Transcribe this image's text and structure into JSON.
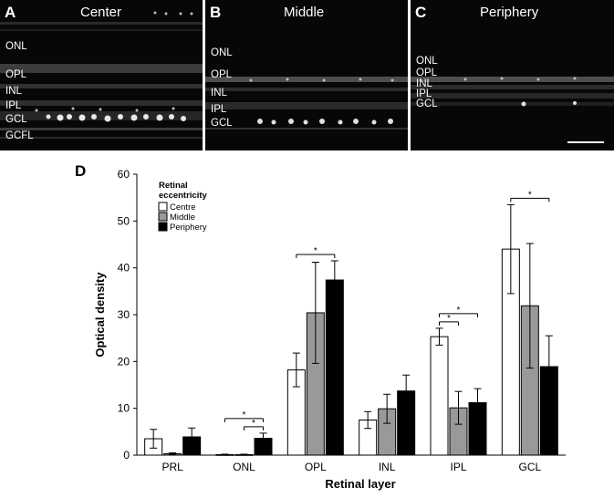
{
  "panels": [
    {
      "letter": "A",
      "title": "Center",
      "layers": [
        "ONL",
        "OPL",
        "INL",
        "IPL",
        "GCL",
        "GCFL"
      ]
    },
    {
      "letter": "B",
      "title": "Middle",
      "layers": [
        "ONL",
        "OPL",
        "INL",
        "IPL",
        "GCL"
      ]
    },
    {
      "letter": "C",
      "title": "Periphery",
      "layers": [
        "ONL",
        "OPL",
        "INL",
        "IPL",
        "GCL"
      ]
    }
  ],
  "chart_letter": "D",
  "chart_data": {
    "type": "bar",
    "xlabel": "Retinal layer",
    "ylabel": "Optical density",
    "ylim": [
      0,
      60
    ],
    "yticks": [
      0,
      10,
      20,
      30,
      40,
      50,
      60
    ],
    "categories": [
      "PRL",
      "ONL",
      "OPL",
      "INL",
      "IPL",
      "GCL"
    ],
    "legend_title": "Retinal eccentricity",
    "legend_position": "top-left",
    "series": [
      {
        "name": "Centre",
        "color": "#ffffff",
        "values": [
          3.5,
          0.1,
          18.2,
          7.5,
          25.3,
          44.0
        ],
        "errors": [
          2.0,
          0.1,
          3.6,
          1.8,
          1.8,
          9.5
        ]
      },
      {
        "name": "Middle",
        "color": "#999999",
        "values": [
          0.3,
          0.1,
          30.4,
          9.9,
          10.1,
          31.9
        ],
        "errors": [
          0.2,
          0.1,
          10.8,
          3.1,
          3.5,
          13.3
        ]
      },
      {
        "name": "Periphery",
        "color": "#000000",
        "values": [
          3.9,
          3.6,
          37.4,
          13.7,
          11.2,
          18.9
        ],
        "errors": [
          1.9,
          1.1,
          4.1,
          3.4,
          3.0,
          6.6
        ]
      }
    ],
    "significance": [
      {
        "category": "ONL",
        "from_series": 0,
        "to_series": 2,
        "label": "*"
      },
      {
        "category": "ONL",
        "from_series": 1,
        "to_series": 2,
        "label": "*"
      },
      {
        "category": "OPL",
        "from_series": 0,
        "to_series": 2,
        "label": "*"
      },
      {
        "category": "IPL",
        "from_series": 0,
        "to_series": 1,
        "label": "*"
      },
      {
        "category": "IPL",
        "from_series": 0,
        "to_series": 2,
        "label": "*"
      },
      {
        "category": "GCL",
        "from_series": 0,
        "to_series": 2,
        "label": "*"
      }
    ]
  }
}
